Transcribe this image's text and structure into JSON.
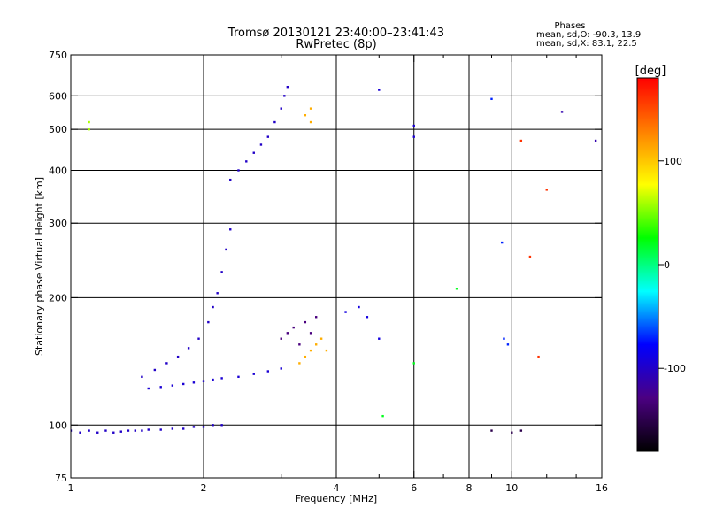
{
  "chart_data": {
    "type": "scatter",
    "title": "Tromsø 20130121 23:40:00–23:41:43",
    "subtitle": "RwPretec (8p)",
    "xlabel": "Frequency [MHz]",
    "ylabel": "Stationary phase Virtual Height [km]",
    "x_scale": "log",
    "y_scale": "log",
    "xlim": [
      1,
      16
    ],
    "ylim": [
      75,
      750
    ],
    "x_ticks": [
      1,
      2,
      4,
      6,
      8,
      10,
      16
    ],
    "x_ticks_unlabeled": [
      3,
      5,
      7,
      9,
      12,
      14
    ],
    "y_ticks": [
      75,
      100,
      200,
      300,
      400,
      500,
      600,
      750
    ],
    "grid": true,
    "phases_box": {
      "title": "Phases",
      "line_o": "mean, sd,O: -90.3, 13.9",
      "line_x": "mean, sd,X:  83.1, 22.5"
    },
    "colorbar": {
      "label": "[deg]",
      "range": [
        -180,
        180
      ],
      "ticks": [
        100,
        0,
        -100
      ],
      "colors": [
        "#000000",
        "#4b0082",
        "#0000ff",
        "#00ffff",
        "#00ff00",
        "#ffff00",
        "#ff8000",
        "#ff0000"
      ]
    },
    "series": [
      {
        "points": [
          [
            1.0,
            97
          ],
          [
            1.05,
            96
          ],
          [
            1.1,
            97
          ],
          [
            1.15,
            96
          ],
          [
            1.2,
            97
          ],
          [
            1.25,
            96
          ],
          [
            1.3,
            96.5
          ],
          [
            1.35,
            97
          ],
          [
            1.4,
            97
          ],
          [
            1.45,
            97
          ],
          [
            1.5,
            97.5
          ],
          [
            1.6,
            97.5
          ],
          [
            1.7,
            98
          ],
          [
            1.8,
            98
          ],
          [
            1.9,
            99
          ],
          [
            2.0,
            99
          ],
          [
            2.1,
            100
          ],
          [
            2.2,
            100
          ]
        ],
        "phase": -100
      },
      {
        "points": [
          [
            1.5,
            122
          ],
          [
            1.6,
            123
          ],
          [
            1.7,
            124
          ],
          [
            1.8,
            125
          ],
          [
            1.9,
            126
          ],
          [
            2.0,
            127
          ],
          [
            2.1,
            128
          ],
          [
            2.2,
            129
          ],
          [
            2.4,
            130
          ],
          [
            2.6,
            132
          ],
          [
            2.8,
            134
          ],
          [
            3.0,
            136
          ]
        ],
        "phase": -95
      },
      {
        "points": [
          [
            1.45,
            130
          ],
          [
            1.55,
            135
          ],
          [
            1.65,
            140
          ],
          [
            1.75,
            145
          ],
          [
            1.85,
            152
          ],
          [
            1.95,
            160
          ],
          [
            2.05,
            175
          ],
          [
            2.1,
            190
          ],
          [
            2.15,
            205
          ],
          [
            2.2,
            230
          ],
          [
            2.25,
            260
          ],
          [
            2.3,
            290
          ]
        ],
        "phase": -100
      },
      {
        "points": [
          [
            2.3,
            380
          ],
          [
            2.4,
            400
          ],
          [
            2.5,
            420
          ],
          [
            2.6,
            440
          ],
          [
            2.7,
            460
          ],
          [
            2.8,
            480
          ],
          [
            2.9,
            520
          ],
          [
            3.0,
            560
          ],
          [
            3.05,
            600
          ],
          [
            3.1,
            630
          ]
        ],
        "phase": -100
      },
      {
        "points": [
          [
            3.0,
            160
          ],
          [
            3.1,
            165
          ],
          [
            3.2,
            170
          ],
          [
            3.3,
            155
          ],
          [
            3.4,
            175
          ],
          [
            3.5,
            165
          ],
          [
            3.6,
            180
          ]
        ],
        "phase": -130
      },
      {
        "points": [
          [
            3.3,
            140
          ],
          [
            3.4,
            145
          ],
          [
            3.5,
            150
          ],
          [
            3.6,
            155
          ],
          [
            3.7,
            160
          ],
          [
            3.8,
            150
          ]
        ],
        "phase": 110
      },
      {
        "points": [
          [
            3.4,
            540
          ],
          [
            3.5,
            520
          ],
          [
            3.5,
            560
          ]
        ],
        "phase": 110
      },
      {
        "points": [
          [
            1.1,
            500
          ],
          [
            1.1,
            520
          ]
        ],
        "phase": 60
      },
      {
        "points": [
          [
            4.2,
            185
          ],
          [
            4.5,
            190
          ],
          [
            4.7,
            180
          ],
          [
            5.0,
            160
          ]
        ],
        "phase": -90
      },
      {
        "points": [
          [
            5.0,
            620
          ],
          [
            6.0,
            510
          ],
          [
            6.0,
            480
          ]
        ],
        "phase": -95
      },
      {
        "points": [
          [
            5.1,
            105
          ],
          [
            6.0,
            140
          ],
          [
            7.5,
            210
          ]
        ],
        "phase": 20
      },
      {
        "points": [
          [
            9.0,
            590
          ],
          [
            9.5,
            270
          ],
          [
            9.6,
            160
          ],
          [
            9.8,
            155
          ]
        ],
        "phase": -70
      },
      {
        "points": [
          [
            10.5,
            470
          ],
          [
            11.0,
            250
          ],
          [
            11.5,
            145
          ],
          [
            12.0,
            360
          ]
        ],
        "phase": 160
      },
      {
        "points": [
          [
            9.0,
            97
          ],
          [
            10.0,
            96
          ],
          [
            10.5,
            97
          ]
        ],
        "phase": -150
      },
      {
        "points": [
          [
            13.0,
            550
          ],
          [
            15.5,
            470
          ]
        ],
        "phase": -110
      }
    ]
  }
}
